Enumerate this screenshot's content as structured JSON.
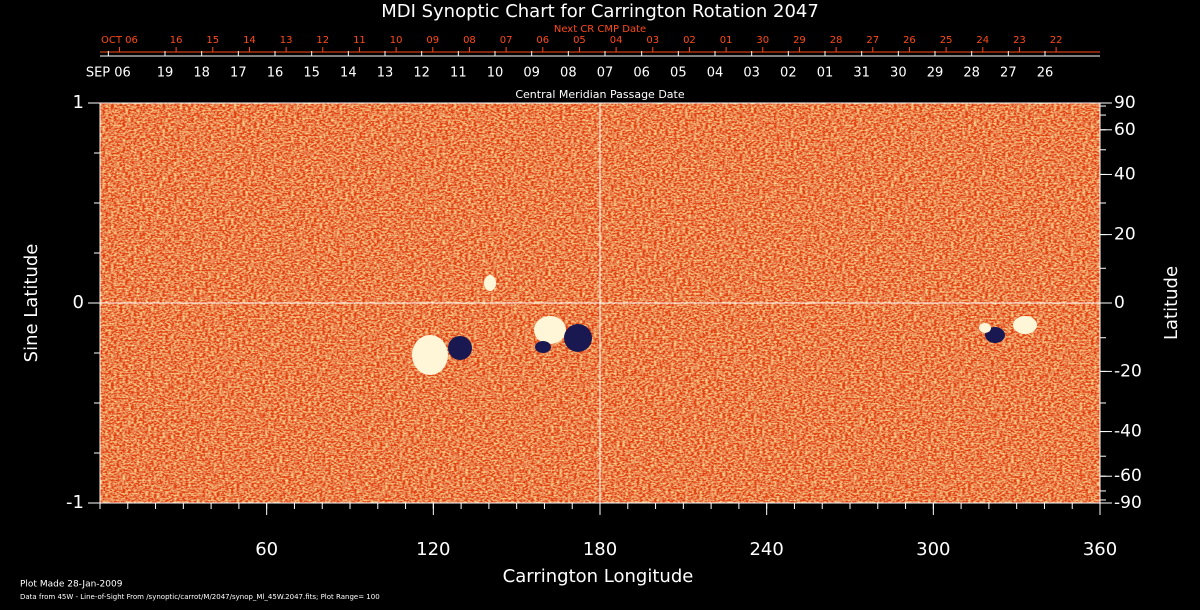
{
  "chart_data": {
    "type": "synoptic-map",
    "title": "MDI Synoptic Chart for Carrington Rotation 2047",
    "next_cmp_title": "Next CR CMP Date",
    "cmp_title": "Central Meridian Passage Date",
    "xlabel": "Carrington Longitude",
    "ylabel": "Sine Latitude",
    "y2label": "Latitude",
    "xlim": [
      0,
      360
    ],
    "xticks": [
      60,
      120,
      180,
      240,
      300,
      360
    ],
    "xminor": 10,
    "ylim": [
      -1,
      1
    ],
    "yticks": [
      -1,
      0,
      1
    ],
    "yminor": 0.25,
    "y2lim": [
      -90,
      90
    ],
    "y2scale": "sine",
    "y2ticks": [
      90,
      60,
      40,
      20,
      0,
      -20,
      -40,
      -60,
      -90
    ],
    "y2minor": 10,
    "crosshair": true,
    "next_cmp_dates": {
      "color": "#ff4a1a",
      "labels": [
        "OCT 06",
        "16",
        "15",
        "14",
        "13",
        "12",
        "11",
        "10",
        "09",
        "08",
        "07",
        "06",
        "05",
        "04",
        "03",
        "02",
        "01",
        "30",
        "29",
        "28",
        "27",
        "26",
        "25",
        "24",
        "23",
        "22"
      ],
      "x": [
        7,
        27.4,
        40.6,
        53.8,
        67.0,
        80.2,
        93.4,
        106.6,
        119.8,
        133.0,
        146.2,
        159.4,
        172.6,
        185.8,
        199.0,
        212.2,
        225.4,
        238.6,
        251.8,
        265.0,
        278.2,
        291.4,
        304.6,
        317.8,
        331.0,
        344.2
      ]
    },
    "cmp_dates": {
      "color": "#ffffff",
      "labels": [
        "SEP 06",
        "19",
        "18",
        "17",
        "16",
        "15",
        "14",
        "13",
        "12",
        "11",
        "10",
        "09",
        "08",
        "07",
        "06",
        "05",
        "04",
        "03",
        "02",
        "01",
        "31",
        "30",
        "29",
        "28",
        "27",
        "26"
      ],
      "x": [
        3,
        23.4,
        36.6,
        49.8,
        63.0,
        76.2,
        89.4,
        102.6,
        115.8,
        129.0,
        142.2,
        155.4,
        168.6,
        181.8,
        195.0,
        208.2,
        221.4,
        234.6,
        247.8,
        261.0,
        274.2,
        287.4,
        300.6,
        313.8,
        327.0,
        340.2
      ]
    },
    "footer": [
      "Plot Made 28-Jan-2009",
      "Data from 45W - Line-of-Sight From /synoptic/carrot/M/2047/synop_Ml_45W.2047.fits; Plot Range=  100"
    ]
  }
}
